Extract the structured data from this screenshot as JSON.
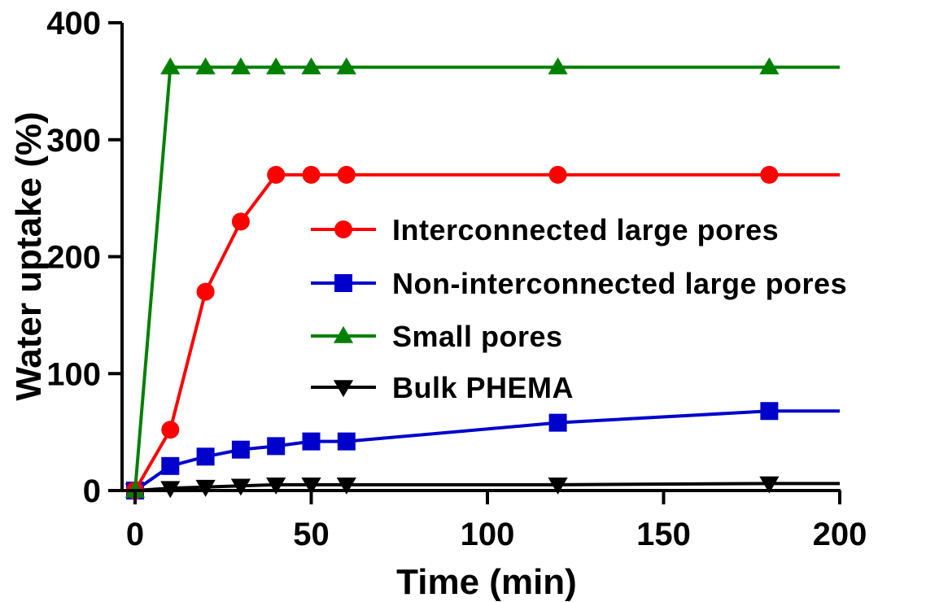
{
  "chart_data": {
    "type": "line",
    "xlabel": "Time (min)",
    "ylabel": "Water uptake (%)",
    "xlim": [
      0,
      200
    ],
    "ylim": [
      0,
      400
    ],
    "xticks": [
      0,
      50,
      100,
      150,
      200
    ],
    "yticks": [
      0,
      100,
      200,
      300,
      400
    ],
    "xtick_labels": [
      "0",
      "50",
      "100",
      "150",
      "200"
    ],
    "ytick_labels": [
      "0",
      "100",
      "200",
      "300",
      "400"
    ],
    "legend_position": "center-right",
    "grid": false,
    "x": [
      0,
      10,
      20,
      30,
      40,
      50,
      60,
      120,
      180
    ],
    "series": [
      {
        "name": "Interconnected large pores",
        "color": "#ff0000",
        "marker": "circle",
        "values": [
          0,
          52,
          170,
          230,
          270,
          270,
          270,
          270,
          270
        ],
        "extend_to": 200
      },
      {
        "name": "Non-interconnected large pores",
        "color": "#0000cc",
        "marker": "square",
        "values": [
          0,
          21,
          29,
          35,
          38,
          42,
          42,
          58,
          68
        ],
        "extend_to": 200
      },
      {
        "name": "Small pores",
        "color": "#008000",
        "marker": "triangle-up",
        "values": [
          0,
          362,
          362,
          362,
          362,
          362,
          362,
          362,
          362
        ],
        "extend_to": 200
      },
      {
        "name": "Bulk PHEMA",
        "color": "#000000",
        "marker": "triangle-down",
        "values": [
          0,
          2,
          3,
          4,
          5,
          5,
          5,
          5,
          6
        ],
        "extend_to": 200
      }
    ]
  }
}
